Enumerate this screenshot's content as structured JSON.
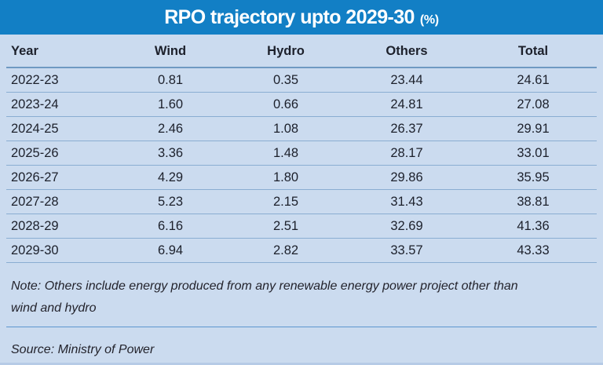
{
  "header": {
    "title": "RPO trajectory upto 2029-30",
    "unit": "(%)"
  },
  "colors": {
    "header_bar": "#127fc5",
    "panel_background": "#cbdbef",
    "title_text": "#ffffff",
    "body_text": "#1c202b",
    "footer_text": "#23232c",
    "header_underline": "#6f99c2",
    "row_divider": "#8aadd2",
    "footer_divider": "#5e97cf",
    "bottom_edge": "#b6cbe6"
  },
  "chart_data": {
    "type": "table",
    "title": "RPO trajectory upto 2029-30 (%)",
    "columns": [
      "Year",
      "Wind",
      "Hydro",
      "Others",
      "Total"
    ],
    "rows": [
      [
        "2022-23",
        "0.81",
        "0.35",
        "23.44",
        "24.61"
      ],
      [
        "2023-24",
        "1.60",
        "0.66",
        "24.81",
        "27.08"
      ],
      [
        "2024-25",
        "2.46",
        "1.08",
        "26.37",
        "29.91"
      ],
      [
        "2025-26",
        "3.36",
        "1.48",
        "28.17",
        "33.01"
      ],
      [
        "2026-27",
        "4.29",
        "1.80",
        "29.86",
        "35.95"
      ],
      [
        "2027-28",
        "5.23",
        "2.15",
        "31.43",
        "38.81"
      ],
      [
        "2028-29",
        "6.16",
        "2.51",
        "32.69",
        "41.36"
      ],
      [
        "2029-30",
        "6.94",
        "2.82",
        "33.57",
        "43.33"
      ]
    ],
    "categories": [
      "2022-23",
      "2023-24",
      "2024-25",
      "2025-26",
      "2026-27",
      "2027-28",
      "2028-29",
      "2029-30"
    ],
    "series": [
      {
        "name": "Wind",
        "values": [
          0.81,
          1.6,
          2.46,
          3.36,
          4.29,
          5.23,
          6.16,
          6.94
        ]
      },
      {
        "name": "Hydro",
        "values": [
          0.35,
          0.66,
          1.08,
          1.48,
          1.8,
          2.15,
          2.51,
          2.82
        ]
      },
      {
        "name": "Others",
        "values": [
          23.44,
          24.81,
          26.37,
          28.17,
          29.86,
          31.43,
          32.69,
          33.57
        ]
      },
      {
        "name": "Total",
        "values": [
          24.61,
          27.08,
          29.91,
          33.01,
          35.95,
          38.81,
          41.36,
          43.33
        ]
      }
    ],
    "unit": "%"
  },
  "footer": {
    "note_lines": [
      "Note: Others include energy produced from any renewable energy power project other than",
      "wind and hydro"
    ],
    "source": "Source: Ministry of Power"
  }
}
